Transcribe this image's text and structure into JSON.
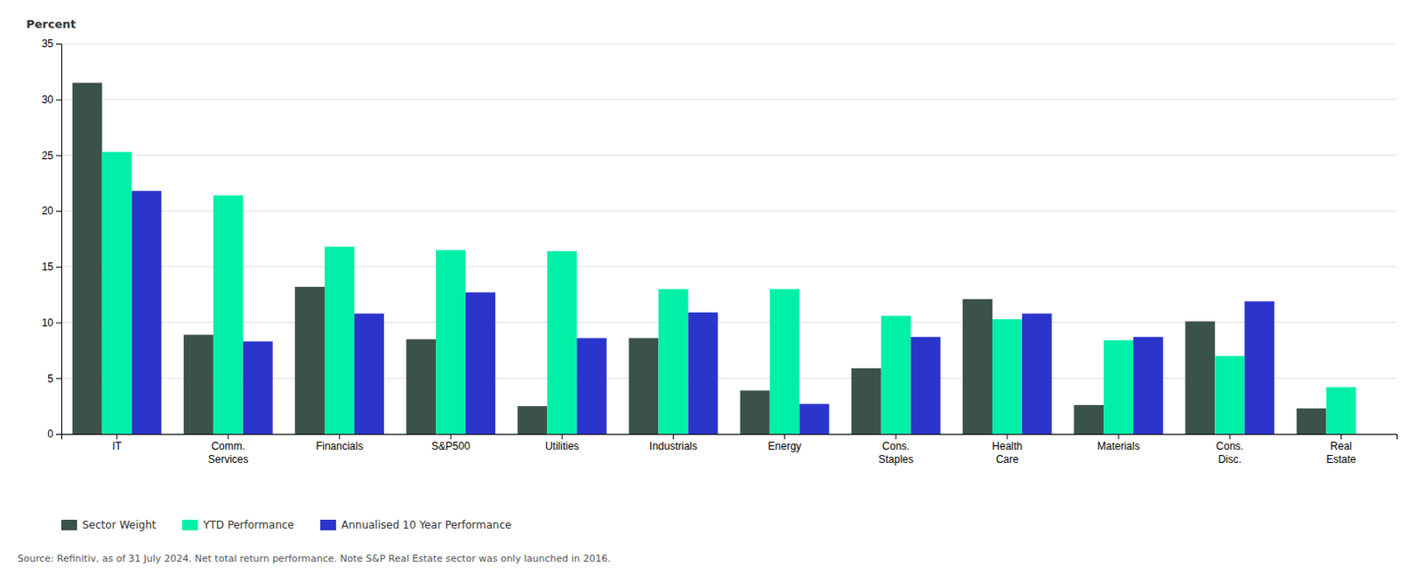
{
  "chart_data": {
    "type": "bar",
    "ylabel": "Percent",
    "categories": [
      "IT",
      "Comm.\nServices",
      "Financials",
      "S&P500",
      "Utilities",
      "Industrials",
      "Energy",
      "Cons.\nStaples",
      "Health\nCare",
      "Materials",
      "Cons.\nDisc.",
      "Real\nEstate"
    ],
    "series": [
      {
        "name": "Sector Weight",
        "color": "#3a5248",
        "values": [
          31.5,
          8.9,
          13.2,
          8.5,
          2.5,
          8.6,
          3.9,
          5.9,
          12.1,
          2.6,
          10.1,
          2.3
        ]
      },
      {
        "name": "YTD Performance",
        "color": "#00f0a8",
        "values": [
          25.3,
          21.4,
          16.8,
          16.5,
          16.4,
          13.0,
          13.0,
          10.6,
          10.3,
          8.4,
          7.0,
          4.2
        ]
      },
      {
        "name": "Annualised 10 Year Performance",
        "color": "#2b35cc",
        "values": [
          21.8,
          8.3,
          10.8,
          12.7,
          8.6,
          10.9,
          2.7,
          8.7,
          10.8,
          8.7,
          11.9,
          0.0
        ]
      }
    ],
    "ylim": [
      0,
      35
    ],
    "yticks": [
      0,
      5,
      10,
      15,
      20,
      25,
      30,
      35
    ],
    "grid": true,
    "legend": "bottom",
    "annotations": [
      "Source: Refinitiv, as of 31 July 2024. Net total return performance. Note S&P Real Estate sector was only launched in 2016."
    ]
  }
}
